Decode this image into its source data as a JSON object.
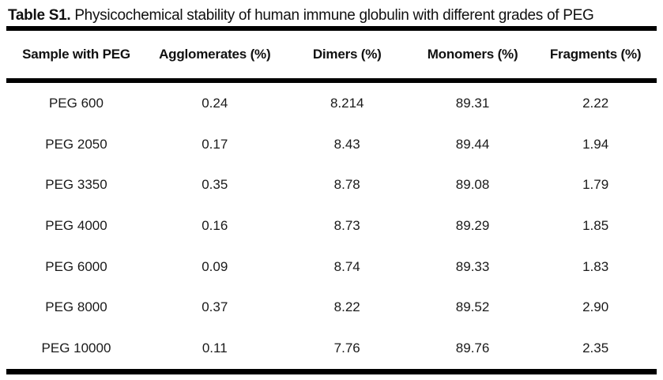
{
  "title": {
    "label": "Table S1.",
    "text": "Physicochemical stability of human immune globulin with different grades of PEG"
  },
  "table": {
    "columns": [
      "Sample with PEG",
      "Agglomerates (%)",
      "Dimers (%)",
      "Monomers (%)",
      "Fragments (%)"
    ],
    "rows": [
      [
        "PEG 600",
        "0.24",
        "8.214",
        "89.31",
        "2.22"
      ],
      [
        "PEG 2050",
        "0.17",
        "8.43",
        "89.44",
        "1.94"
      ],
      [
        "PEG 3350",
        "0.35",
        "8.78",
        "89.08",
        "1.79"
      ],
      [
        "PEG 4000",
        "0.16",
        "8.73",
        "89.29",
        "1.85"
      ],
      [
        "PEG 6000",
        "0.09",
        "8.74",
        "89.33",
        "1.83"
      ],
      [
        "PEG 8000",
        "0.37",
        "8.22",
        "89.52",
        "2.90"
      ],
      [
        "PEG 10000",
        "0.11",
        "7.76",
        "89.76",
        "2.35"
      ]
    ]
  },
  "colors": {
    "background": "#ffffff",
    "text": "#1a1a1a",
    "rule": "#000000"
  }
}
